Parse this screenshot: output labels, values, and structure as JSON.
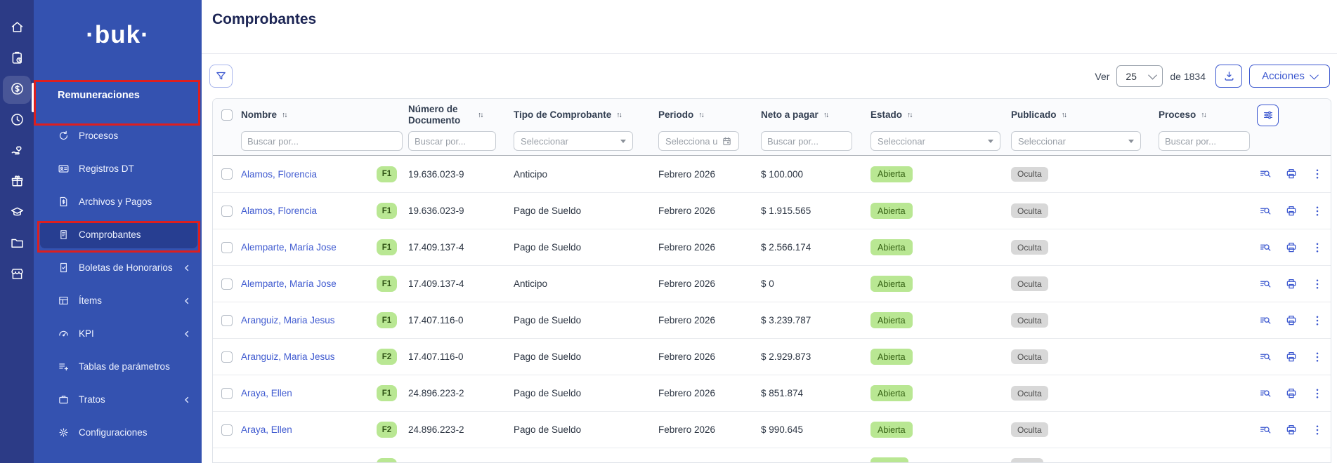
{
  "app": {
    "title": "Comprobantes"
  },
  "sidebar": {
    "logo_text": "·buk·",
    "rail_icons": [
      "home-icon",
      "clipboard-schedule-icon",
      "dollar-coin-icon",
      "clock-icon",
      "hand-heart-icon",
      "gift-icon",
      "graduation-cap-icon",
      "folder-icon",
      "storefront-icon"
    ],
    "active_rail_icon": "dollar-coin-icon",
    "section_label": "Remuneraciones",
    "menu_items": [
      {
        "label": "Procesos",
        "icon": "refresh-icon",
        "collapsible": false,
        "active": false
      },
      {
        "label": "Registros DT",
        "icon": "id-card-icon",
        "collapsible": false,
        "active": false
      },
      {
        "label": "Archivos y Pagos",
        "icon": "document-dollar-icon",
        "collapsible": false,
        "active": false
      },
      {
        "label": "Comprobantes",
        "icon": "receipt-icon",
        "collapsible": false,
        "active": true
      },
      {
        "label": "Boletas de Honorarios",
        "icon": "document-check-icon",
        "collapsible": true,
        "active": false
      },
      {
        "label": "Ítems",
        "icon": "table-icon",
        "collapsible": true,
        "active": false
      },
      {
        "label": "KPI",
        "icon": "gauge-icon",
        "collapsible": true,
        "active": false
      },
      {
        "label": "Tablas de parámetros",
        "icon": "list-plus-icon",
        "collapsible": false,
        "active": false
      },
      {
        "label": "Tratos",
        "icon": "briefcase-icon",
        "collapsible": true,
        "active": false
      },
      {
        "label": "Configuraciones",
        "icon": "gear-icon",
        "collapsible": false,
        "active": false
      }
    ],
    "red_highlight_boxes": [
      "Remuneraciones",
      "Comprobantes"
    ]
  },
  "toolbar": {
    "ver_label": "Ver",
    "page_size": "25",
    "total_label": "de 1834",
    "actions_label": "Acciones"
  },
  "table": {
    "columns": [
      {
        "label": "Nombre",
        "filter_type": "text",
        "filter_placeholder": "Buscar por..."
      },
      {
        "label": "Número de Documento",
        "filter_type": "text",
        "filter_placeholder": "Buscar por..."
      },
      {
        "label": "Tipo de Comprobante",
        "filter_type": "select",
        "filter_placeholder": "Seleccionar"
      },
      {
        "label": "Periodo",
        "filter_type": "date",
        "filter_placeholder": "Selecciona u"
      },
      {
        "label": "Neto a pagar",
        "filter_type": "text",
        "filter_placeholder": "Buscar por..."
      },
      {
        "label": "Estado",
        "filter_type": "select",
        "filter_placeholder": "Seleccionar"
      },
      {
        "label": "Publicado",
        "filter_type": "select",
        "filter_placeholder": "Seleccionar"
      },
      {
        "label": "Proceso",
        "filter_type": "text",
        "filter_placeholder": "Buscar por..."
      }
    ],
    "rows": [
      {
        "name": "Alamos, Florencia",
        "badge": "F1",
        "document_number": "19.636.023-9",
        "tipo": "Anticipo",
        "periodo": "Febrero 2026",
        "neto": "$ 100.000",
        "estado": "Abierta",
        "publicado": "Oculta",
        "proceso": ""
      },
      {
        "name": "Alamos, Florencia",
        "badge": "F1",
        "document_number": "19.636.023-9",
        "tipo": "Pago de Sueldo",
        "periodo": "Febrero 2026",
        "neto": "$ 1.915.565",
        "estado": "Abierta",
        "publicado": "Oculta",
        "proceso": ""
      },
      {
        "name": "Alemparte, María Jose",
        "badge": "F1",
        "document_number": "17.409.137-4",
        "tipo": "Pago de Sueldo",
        "periodo": "Febrero 2026",
        "neto": "$ 2.566.174",
        "estado": "Abierta",
        "publicado": "Oculta",
        "proceso": ""
      },
      {
        "name": "Alemparte, María Jose",
        "badge": "F1",
        "document_number": "17.409.137-4",
        "tipo": "Anticipo",
        "periodo": "Febrero 2026",
        "neto": "$ 0",
        "estado": "Abierta",
        "publicado": "Oculta",
        "proceso": ""
      },
      {
        "name": "Aranguiz, Maria Jesus",
        "badge": "F1",
        "document_number": "17.407.116-0",
        "tipo": "Pago de Sueldo",
        "periodo": "Febrero 2026",
        "neto": "$ 3.239.787",
        "estado": "Abierta",
        "publicado": "Oculta",
        "proceso": ""
      },
      {
        "name": "Aranguiz, Maria Jesus",
        "badge": "F2",
        "document_number": "17.407.116-0",
        "tipo": "Pago de Sueldo",
        "periodo": "Febrero 2026",
        "neto": "$ 2.929.873",
        "estado": "Abierta",
        "publicado": "Oculta",
        "proceso": ""
      },
      {
        "name": "Araya, Ellen",
        "badge": "F1",
        "document_number": "24.896.223-2",
        "tipo": "Pago de Sueldo",
        "periodo": "Febrero 2026",
        "neto": "$ 851.874",
        "estado": "Abierta",
        "publicado": "Oculta",
        "proceso": ""
      },
      {
        "name": "Araya, Ellen",
        "badge": "F2",
        "document_number": "24.896.223-2",
        "tipo": "Pago de Sueldo",
        "periodo": "Febrero 2026",
        "neto": "$ 990.645",
        "estado": "Abierta",
        "publicado": "Oculta",
        "proceso": ""
      }
    ],
    "partial_ninth_row_visible": true,
    "row_action_icons": [
      "search-details-icon",
      "print-icon",
      "kebab-menu-icon"
    ],
    "sort_icon": "↑↓"
  },
  "colors": {
    "sidebar_rail": "#2c3b86",
    "sidebar_panel": "#3452b0",
    "accent_blue": "#3b57cf",
    "link_blue": "#3f5ad0",
    "title_navy": "#1c2554",
    "status_green_bg": "#b9e793",
    "status_green_text": "#356113",
    "published_gray_bg": "#d8d8d8",
    "annotation_red": "#dd1f1f"
  }
}
